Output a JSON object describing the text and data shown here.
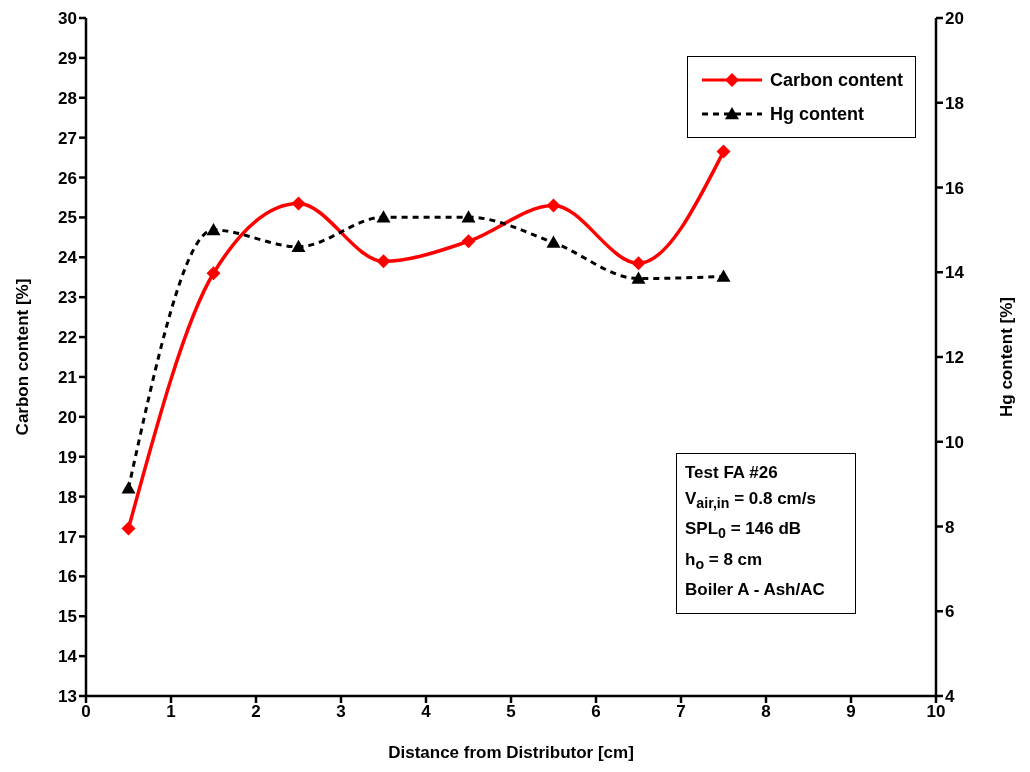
{
  "chart_data": {
    "type": "line",
    "x": [
      0.5,
      1.5,
      2.5,
      3.5,
      4.5,
      5.5,
      6.5,
      7.5
    ],
    "series": [
      {
        "name": "Carbon content",
        "color": "#ff0000",
        "marker": "diamond",
        "line_style": "solid",
        "values": [
          17.2,
          23.6,
          25.35,
          23.9,
          24.4,
          25.3,
          23.85,
          26.65
        ]
      },
      {
        "name": "Hg content",
        "color": "#000000",
        "marker": "triangle",
        "line_style": "dashed",
        "axis": "y2",
        "values": [
          8.9,
          15.0,
          14.6,
          15.3,
          15.3,
          14.7,
          13.85,
          13.9
        ]
      }
    ],
    "xlabel": "Distance from Distributor [cm]",
    "ylabel": "Carbon content [%]",
    "y2label": "Hg content [%]",
    "xlim": [
      0,
      10
    ],
    "xticks": [
      0,
      1,
      2,
      3,
      4,
      5,
      6,
      7,
      8,
      9,
      10
    ],
    "ylim": [
      13,
      30
    ],
    "yticks": [
      13,
      14,
      15,
      16,
      17,
      18,
      19,
      20,
      21,
      22,
      23,
      24,
      25,
      26,
      27,
      28,
      29,
      30
    ],
    "y2lim": [
      4,
      20
    ],
    "y2ticks": [
      4,
      6,
      8,
      10,
      12,
      14,
      16,
      18,
      20
    ],
    "grid": false,
    "legend": "top right",
    "annotations": [
      "Test  FA #26",
      "V$_{air,in}$ = 0.8 cm/s",
      "SPL$_{0}$ = 146 dB",
      "h$_{o}$ = 8 cm",
      "Boiler A - Ash/AC"
    ]
  }
}
